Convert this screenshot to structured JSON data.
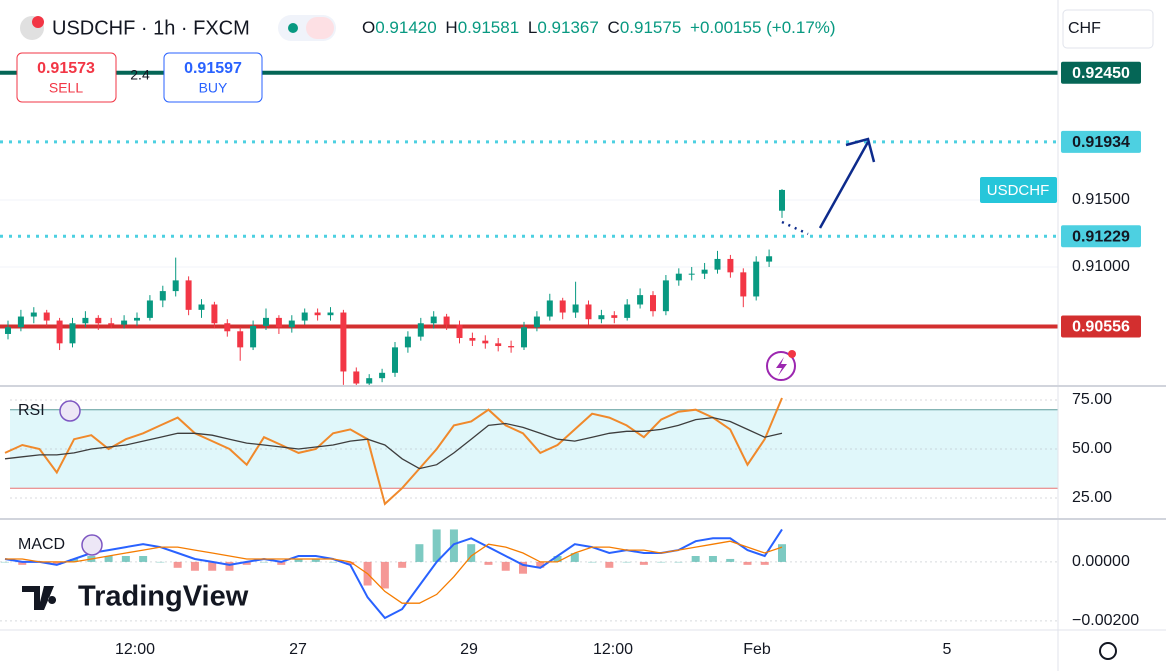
{
  "header": {
    "symbol": "USDCHF · 1h · FXCM",
    "open_label": "O",
    "open": "0.91420",
    "high_label": "H",
    "high": "0.91581",
    "low_label": "L",
    "low": "0.91367",
    "close_label": "C",
    "close": "0.91575",
    "change": "+0.00155 (+0.17%)"
  },
  "trade": {
    "sell_price": "0.91573",
    "sell": "SELL",
    "spread": "2.4",
    "buy_price": "0.91597",
    "buy": "BUY"
  },
  "currency": "CHF",
  "watermark": "TradingView",
  "time_axis": [
    "12:00",
    "27",
    "29",
    "12:00",
    "Feb",
    "5"
  ],
  "chart_data": [
    {
      "type": "candlestick",
      "symbol_label": "USDCHF",
      "up_color": "#089981",
      "down_color": "#f23645",
      "ylim": [
        0.90119,
        0.92993
      ],
      "yticks": [
        {
          "value": 0.915,
          "label": "0.91500"
        },
        {
          "value": 0.91,
          "label": "0.91000"
        }
      ],
      "grid": true,
      "levels": [
        {
          "value": 0.9245,
          "label": "0.92450",
          "color": "#056656",
          "style": "solid"
        },
        {
          "value": 0.91934,
          "label": "0.91934",
          "color": "#4dd0e1",
          "style": "dotted"
        },
        {
          "value": 0.91229,
          "label": "0.91229",
          "color": "#4dd0e1",
          "style": "dotted"
        },
        {
          "value": 0.90556,
          "label": "0.90556",
          "color": "#d32f2f",
          "style": "solid"
        }
      ],
      "candles": [
        [
          0.905,
          0.906,
          0.9046,
          0.9055
        ],
        [
          0.9055,
          0.9068,
          0.9052,
          0.9063
        ],
        [
          0.9063,
          0.907,
          0.9058,
          0.9066
        ],
        [
          0.9066,
          0.9068,
          0.9056,
          0.906
        ],
        [
          0.906,
          0.9062,
          0.9038,
          0.9043
        ],
        [
          0.9043,
          0.9062,
          0.904,
          0.9058
        ],
        [
          0.9058,
          0.9067,
          0.9055,
          0.9062
        ],
        [
          0.9062,
          0.9064,
          0.9053,
          0.9058
        ],
        [
          0.9058,
          0.9062,
          0.9054,
          0.9057
        ],
        [
          0.9057,
          0.9064,
          0.9054,
          0.906
        ],
        [
          0.906,
          0.9066,
          0.9056,
          0.9062
        ],
        [
          0.9062,
          0.9079,
          0.906,
          0.9075
        ],
        [
          0.9075,
          0.9086,
          0.907,
          0.9082
        ],
        [
          0.9082,
          0.9107,
          0.9078,
          0.909
        ],
        [
          0.909,
          0.9093,
          0.9064,
          0.9068
        ],
        [
          0.9068,
          0.9076,
          0.9062,
          0.9072
        ],
        [
          0.9072,
          0.9074,
          0.9054,
          0.9058
        ],
        [
          0.9058,
          0.9061,
          0.9048,
          0.9052
        ],
        [
          0.9052,
          0.9055,
          0.903,
          0.904
        ],
        [
          0.904,
          0.906,
          0.9038,
          0.9056
        ],
        [
          0.9056,
          0.9069,
          0.9053,
          0.9062
        ],
        [
          0.9062,
          0.9064,
          0.905,
          0.9055
        ],
        [
          0.9055,
          0.9064,
          0.9051,
          0.906
        ],
        [
          0.906,
          0.9069,
          0.9057,
          0.9066
        ],
        [
          0.9066,
          0.9069,
          0.906,
          0.9064
        ],
        [
          0.9064,
          0.907,
          0.906,
          0.9066
        ],
        [
          0.9066,
          0.9068,
          0.9012,
          0.9022
        ],
        [
          0.9022,
          0.9025,
          0.9008,
          0.9013
        ],
        [
          0.9013,
          0.902,
          0.901,
          0.9017
        ],
        [
          0.9017,
          0.9024,
          0.9014,
          0.9021
        ],
        [
          0.9021,
          0.9044,
          0.9018,
          0.904
        ],
        [
          0.904,
          0.9052,
          0.9036,
          0.9048
        ],
        [
          0.9048,
          0.9062,
          0.9045,
          0.9058
        ],
        [
          0.9058,
          0.9067,
          0.9054,
          0.9063
        ],
        [
          0.9063,
          0.9065,
          0.9053,
          0.9057
        ],
        [
          0.9057,
          0.906,
          0.9043,
          0.9047
        ],
        [
          0.9047,
          0.9051,
          0.9041,
          0.9045
        ],
        [
          0.9045,
          0.9049,
          0.9039,
          0.9043
        ],
        [
          0.9043,
          0.9047,
          0.9037,
          0.9041
        ],
        [
          0.9041,
          0.9045,
          0.9036,
          0.904
        ],
        [
          0.904,
          0.9059,
          0.9038,
          0.9055
        ],
        [
          0.9055,
          0.9067,
          0.9052,
          0.9063
        ],
        [
          0.9063,
          0.908,
          0.906,
          0.9075
        ],
        [
          0.9075,
          0.9077,
          0.9061,
          0.9066
        ],
        [
          0.9066,
          0.9089,
          0.9062,
          0.9072
        ],
        [
          0.9072,
          0.9075,
          0.9057,
          0.9061
        ],
        [
          0.9061,
          0.9068,
          0.9058,
          0.9064
        ],
        [
          0.9064,
          0.9067,
          0.9058,
          0.9062
        ],
        [
          0.9062,
          0.9076,
          0.906,
          0.9072
        ],
        [
          0.9072,
          0.9084,
          0.9069,
          0.9079
        ],
        [
          0.9079,
          0.9082,
          0.9063,
          0.9067
        ],
        [
          0.9067,
          0.9094,
          0.9064,
          0.909
        ],
        [
          0.909,
          0.9099,
          0.9086,
          0.9095
        ],
        [
          0.9095,
          0.91,
          0.909,
          0.9095
        ],
        [
          0.9095,
          0.9103,
          0.9091,
          0.9098
        ],
        [
          0.9098,
          0.9112,
          0.9095,
          0.9106
        ],
        [
          0.9106,
          0.9109,
          0.9092,
          0.9096
        ],
        [
          0.9096,
          0.9099,
          0.907,
          0.9078
        ],
        [
          0.9078,
          0.9108,
          0.9075,
          0.9104
        ],
        [
          0.9104,
          0.9113,
          0.91,
          0.9108
        ],
        [
          0.9142,
          0.91581,
          0.91367,
          0.91575
        ]
      ]
    },
    {
      "type": "line",
      "title": "RSI",
      "ylim": [
        14.8,
        81.6
      ],
      "yticks": [
        {
          "value": 75,
          "label": "75.00"
        },
        {
          "value": 50,
          "label": "50.00"
        },
        {
          "value": 25,
          "label": "25.00"
        }
      ],
      "band": [
        30,
        70
      ],
      "band_color": "#e0f7fa",
      "series": [
        {
          "color": "#f0892b",
          "values": [
            48,
            52,
            50,
            38,
            55,
            57,
            50,
            55,
            58,
            62,
            66,
            58,
            54,
            50,
            42,
            56,
            52,
            48,
            50,
            58,
            60,
            55,
            22,
            30,
            40,
            50,
            62,
            64,
            70,
            62,
            58,
            48,
            52,
            60,
            68,
            66,
            62,
            56,
            65,
            69,
            70,
            66,
            60,
            42,
            55,
            76
          ]
        },
        {
          "color": "#3d3d3d",
          "values": [
            45,
            46,
            47,
            47,
            48,
            50,
            51,
            52,
            54,
            56,
            58,
            58,
            57,
            55,
            53,
            52,
            51,
            50,
            51,
            52,
            54,
            55,
            52,
            45,
            40,
            42,
            48,
            55,
            62,
            63,
            61,
            58,
            55,
            54,
            56,
            58,
            59,
            59,
            60,
            62,
            65,
            66,
            64,
            60,
            56,
            58
          ]
        }
      ]
    },
    {
      "type": "macd",
      "title": "MACD",
      "ylim": [
        -0.00224,
        0.00142
      ],
      "yticks": [
        {
          "value": 0,
          "label": "0.00000"
        },
        {
          "value": -0.002,
          "label": "−0.00200"
        }
      ],
      "histogram": {
        "up_color": "#26a69a",
        "down_color": "#ef5350",
        "values": [
          0,
          -0.0001,
          0,
          -0.0001,
          0.0001,
          0.0002,
          0.0002,
          0.0002,
          0.0002,
          0,
          -0.0002,
          -0.0003,
          -0.0003,
          -0.0003,
          -0.0001,
          0,
          -0.0001,
          0.0001,
          0.0001,
          0,
          -0.0001,
          -0.0008,
          -0.0009,
          -0.0002,
          0.0006,
          0.0011,
          0.0011,
          0.0006,
          -0.0001,
          -0.0003,
          -0.0004,
          -0.0002,
          0.0002,
          0.0003,
          0,
          -0.0002,
          0,
          -0.0001,
          0,
          0,
          0.0002,
          0.0002,
          0.0001,
          -0.0001,
          -0.0001,
          0.0006
        ]
      },
      "series": [
        {
          "color": "#2962ff",
          "values": [
            0.0001,
            0,
            0,
            -0.0001,
            0.0001,
            0.0003,
            0.0004,
            0.0005,
            0.0006,
            0.0005,
            0.0003,
            0.0001,
            0,
            -0.0001,
            0,
            0.0001,
            0,
            0.0002,
            0.0002,
            0.0001,
            -0.0001,
            -0.0012,
            -0.0019,
            -0.0016,
            -0.0008,
            0,
            0.0006,
            0.0008,
            0.0005,
            0.0002,
            -0.0001,
            -0.0002,
            0.0002,
            0.0006,
            0.0005,
            0.0003,
            0.0004,
            0.0003,
            0.0003,
            0.0004,
            0.0007,
            0.0008,
            0.0008,
            0.0004,
            0.0002,
            0.0011
          ]
        },
        {
          "color": "#f57c00",
          "values": [
            0.0001,
            0.0001,
            0,
            0,
            0,
            0.0001,
            0.0002,
            0.0003,
            0.0004,
            0.0005,
            0.0005,
            0.0004,
            0.0003,
            0.0002,
            0.0001,
            0.0001,
            0.0001,
            0.0001,
            0.0001,
            0.0001,
            0,
            -0.0004,
            -0.001,
            -0.0014,
            -0.0014,
            -0.0011,
            -0.0005,
            0.0002,
            0.0006,
            0.0005,
            0.0003,
            0,
            0,
            0.0003,
            0.0005,
            0.0005,
            0.0004,
            0.0004,
            0.0003,
            0.0004,
            0.0005,
            0.0006,
            0.0007,
            0.0005,
            0.0003,
            0.0005
          ]
        }
      ]
    }
  ]
}
